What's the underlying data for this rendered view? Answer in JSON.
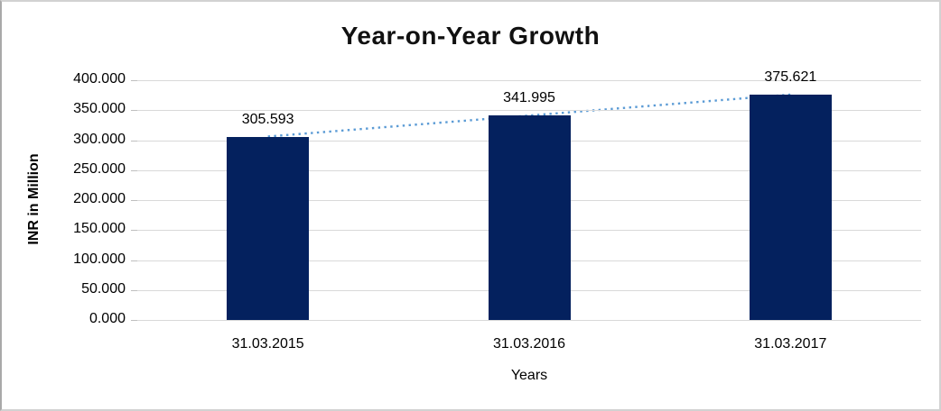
{
  "chart_data": {
    "type": "bar",
    "title": "Year-on-Year Growth",
    "categories": [
      "31.03.2015",
      "31.03.2016",
      "31.03.2017"
    ],
    "values": [
      305.593,
      341.995,
      375.621
    ],
    "data_labels": [
      "305.593",
      "341.995",
      "375.621"
    ],
    "xlabel": "Years",
    "ylabel": "INR in Million",
    "ylim": [
      0,
      400
    ],
    "ytick_step": 50,
    "ytick_labels": [
      "400.000",
      "350.000",
      "300.000",
      "250.000",
      "200.000",
      "150.000",
      "100.000",
      "50.000",
      "0.000"
    ],
    "grid": true,
    "legend": "none",
    "bar_color": "#04215e",
    "grid_color": "#d9d9d9",
    "trendline": {
      "type": "linear",
      "style": "dotted",
      "color": "#5b9bd5"
    }
  }
}
